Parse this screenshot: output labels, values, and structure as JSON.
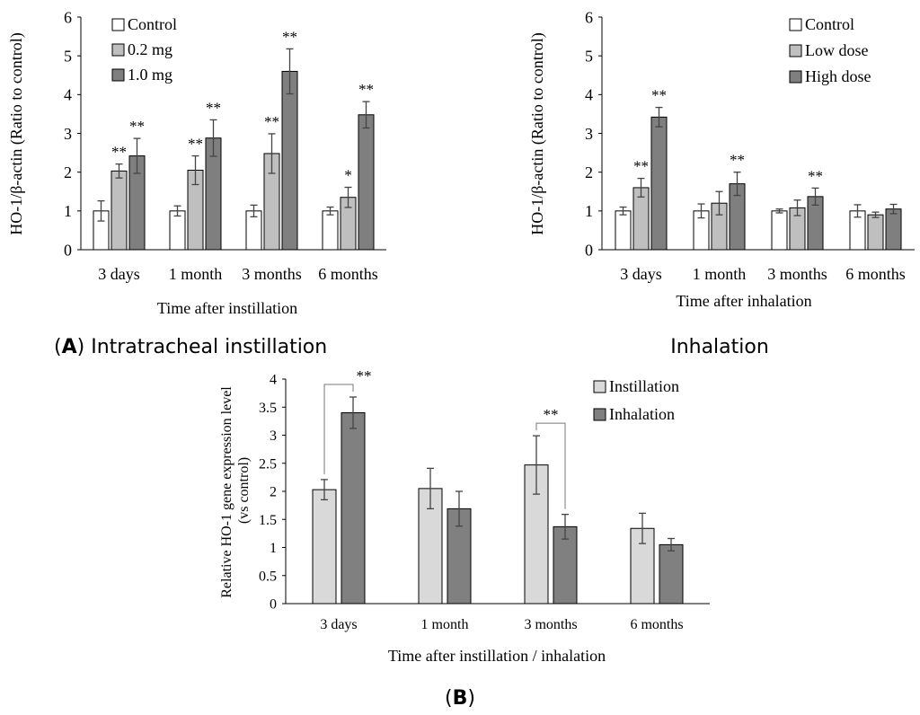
{
  "chart_data": [
    {
      "id": "A1",
      "type": "bar",
      "title": "",
      "xlabel": "Time after instillation",
      "ylabel": "HO-1/β-actin (Ratio to control)",
      "ylim": [
        0,
        6
      ],
      "yticks": [
        "0",
        "1",
        "2",
        "3",
        "4",
        "5",
        "6"
      ],
      "categories": [
        "3 days",
        "1 month",
        "3 months",
        "6 months"
      ],
      "legend_position": "top-left",
      "series": [
        {
          "name": "Control",
          "color": "#ffffff",
          "values": [
            1.0,
            1.0,
            1.0,
            1.0
          ],
          "errors": [
            0.26,
            0.13,
            0.15,
            0.1
          ],
          "sig": [
            "",
            "",
            "",
            ""
          ]
        },
        {
          "name": "0.2 mg",
          "color": "#bfbfbf",
          "values": [
            2.03,
            2.05,
            2.48,
            1.35
          ],
          "errors": [
            0.18,
            0.37,
            0.51,
            0.26
          ],
          "sig": [
            "**",
            "**",
            "**",
            "*"
          ]
        },
        {
          "name": "1.0 mg",
          "color": "#7f7f7f",
          "values": [
            2.42,
            2.88,
            4.6,
            3.48
          ],
          "errors": [
            0.45,
            0.47,
            0.58,
            0.34
          ],
          "sig": [
            "**",
            "**",
            "**",
            "**"
          ]
        }
      ]
    },
    {
      "id": "A2",
      "type": "bar",
      "title": "",
      "xlabel": "Time after inhalation",
      "ylabel": "HO-1/β-actin (Ratio to control)",
      "ylim": [
        0,
        6
      ],
      "yticks": [
        "0",
        "1",
        "2",
        "3",
        "4",
        "5",
        "6"
      ],
      "categories": [
        "3 days",
        "1 month",
        "3 months",
        "6 months"
      ],
      "legend_position": "top-right",
      "series": [
        {
          "name": "Control",
          "color": "#ffffff",
          "values": [
            1.0,
            1.0,
            1.0,
            1.0
          ],
          "errors": [
            0.1,
            0.18,
            0.05,
            0.16
          ],
          "sig": [
            "",
            "",
            "",
            ""
          ]
        },
        {
          "name": "Low dose",
          "color": "#bfbfbf",
          "values": [
            1.6,
            1.2,
            1.08,
            0.9
          ],
          "errors": [
            0.24,
            0.3,
            0.2,
            0.07
          ],
          "sig": [
            "**",
            "",
            "",
            ""
          ]
        },
        {
          "name": "High dose",
          "color": "#7f7f7f",
          "values": [
            3.42,
            1.7,
            1.37,
            1.05
          ],
          "errors": [
            0.25,
            0.3,
            0.22,
            0.12
          ],
          "sig": [
            "**",
            "**",
            "**",
            ""
          ]
        }
      ]
    },
    {
      "id": "B",
      "type": "bar",
      "title": "",
      "xlabel": "Time after instillation / inhalation",
      "ylabel_line1": "Relative HO-1 gene expression level",
      "ylabel_line2": "(vs control)",
      "ylim": [
        0,
        4
      ],
      "yticks": [
        "0",
        "0.5",
        "1",
        "1.5",
        "2",
        "2.5",
        "3",
        "3.5",
        "4"
      ],
      "categories": [
        "3 days",
        "1 month",
        "3 months",
        "6 months"
      ],
      "legend_position": "top-right",
      "series": [
        {
          "name": "Instillation",
          "color": "#d9d9d9",
          "values": [
            2.03,
            2.05,
            2.47,
            1.34
          ],
          "errors": [
            0.18,
            0.36,
            0.52,
            0.27
          ]
        },
        {
          "name": "Inhalation",
          "color": "#808080",
          "values": [
            3.4,
            1.69,
            1.37,
            1.05
          ],
          "errors": [
            0.28,
            0.31,
            0.22,
            0.11
          ]
        }
      ],
      "annotations": [
        {
          "label": "**",
          "category_index": 0
        },
        {
          "label": "**",
          "category_index": 2
        }
      ]
    }
  ],
  "captions": {
    "panel_a_letter": "A",
    "panel_a_left": "Intratracheal instillation",
    "panel_a_right": "Inhalation",
    "panel_b_letter": "B"
  }
}
